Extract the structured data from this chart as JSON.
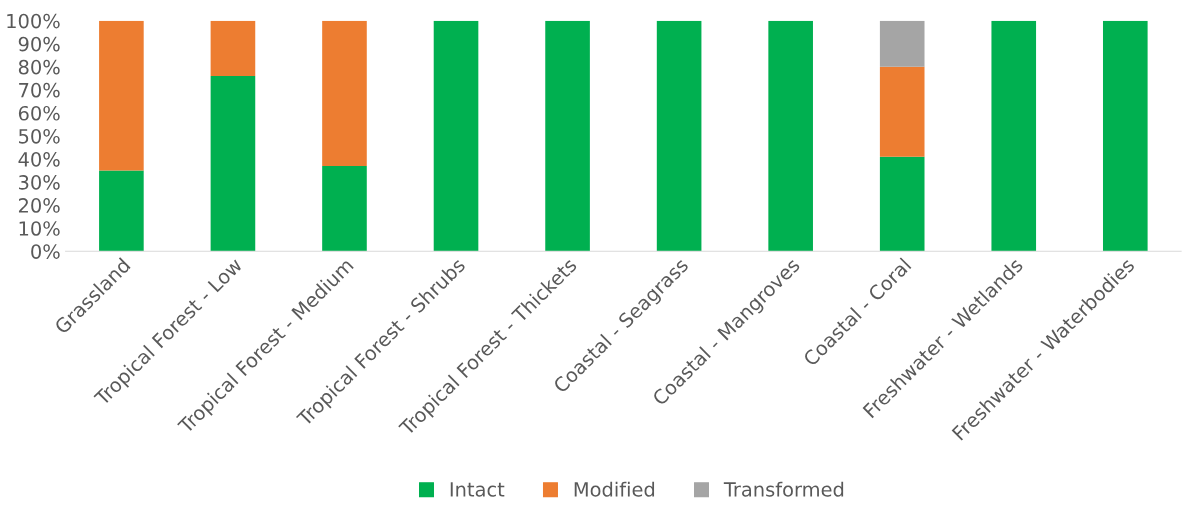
{
  "chart_data": {
    "type": "bar",
    "stacked": true,
    "categories": [
      "Grassland",
      "Tropical Forest - Low",
      "Tropical Forest - Medium",
      "Tropical Forest - Shrubs",
      "Tropical Forest - Thickets",
      "Coastal - Seagrass",
      "Coastal - Mangroves",
      "Coastal - Coral",
      "Freshwater - Wetlands",
      "Freshwater - Waterbodies"
    ],
    "series": [
      {
        "name": "Intact",
        "color": "#00b050",
        "values": [
          35,
          76,
          37,
          100,
          100,
          100,
          100,
          41,
          100,
          100
        ]
      },
      {
        "name": "Modified",
        "color": "#ed7d31",
        "values": [
          65,
          24,
          63,
          0,
          0,
          0,
          0,
          39,
          0,
          0
        ]
      },
      {
        "name": "Transformed",
        "color": "#a5a5a5",
        "values": [
          0,
          0,
          0,
          0,
          0,
          0,
          0,
          20,
          0,
          0
        ]
      }
    ],
    "ylim": [
      0,
      100
    ],
    "yticks": [
      {
        "value": 0,
        "label": "0%"
      },
      {
        "value": 10,
        "label": "10%"
      },
      {
        "value": 20,
        "label": "20%"
      },
      {
        "value": 30,
        "label": "30%"
      },
      {
        "value": 40,
        "label": "40%"
      },
      {
        "value": 50,
        "label": "50%"
      },
      {
        "value": 60,
        "label": "60%"
      },
      {
        "value": 70,
        "label": "70%"
      },
      {
        "value": 80,
        "label": "80%"
      },
      {
        "value": 90,
        "label": "90%"
      },
      {
        "value": 100,
        "label": "100%"
      }
    ],
    "legend": "bottom"
  }
}
